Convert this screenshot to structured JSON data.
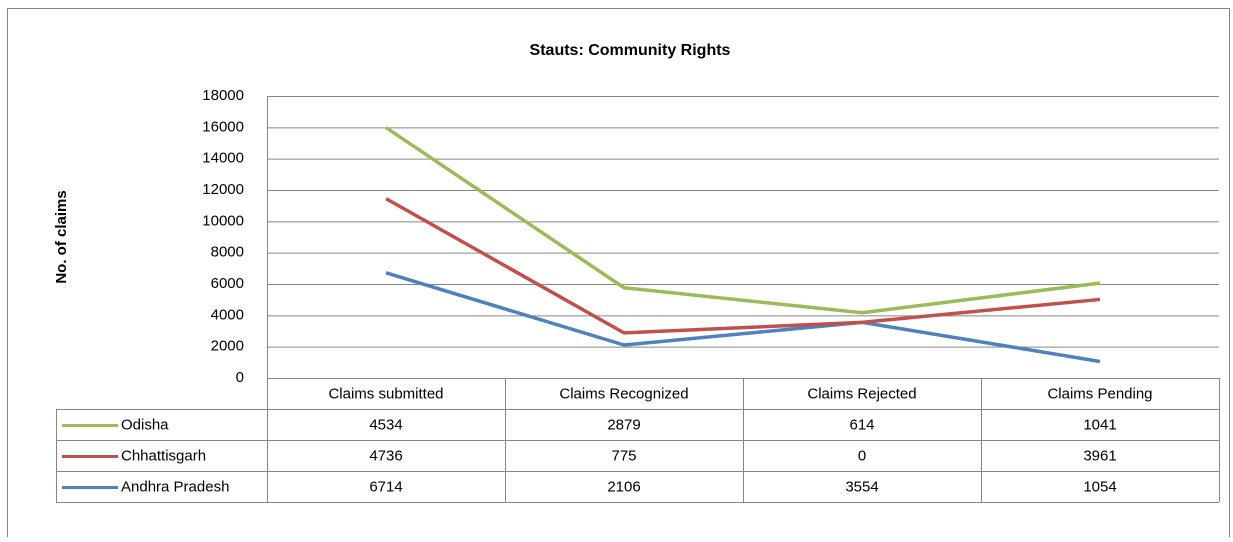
{
  "chart_data": {
    "type": "line",
    "stacked": true,
    "title": "Stauts: Community Rights",
    "ylabel": "No. of claims",
    "categories": [
      "Claims submitted",
      "Claims Recognized",
      "Claims Rejected",
      "Claims Pending"
    ],
    "series": [
      {
        "name": "Odisha",
        "color": "#9bbb59",
        "values": [
          4534,
          2879,
          614,
          1041
        ]
      },
      {
        "name": "Chhattisgarh",
        "color": "#c0504d",
        "values": [
          4736,
          775,
          0,
          3961
        ]
      },
      {
        "name": "Andhra Pradesh",
        "color": "#4f81bd",
        "values": [
          6714,
          2106,
          3554,
          1054
        ]
      }
    ],
    "ylim": [
      0,
      18000
    ],
    "yticks": [
      0,
      2000,
      4000,
      6000,
      8000,
      10000,
      12000,
      14000,
      16000,
      18000
    ],
    "grid": true,
    "data_table": true
  }
}
